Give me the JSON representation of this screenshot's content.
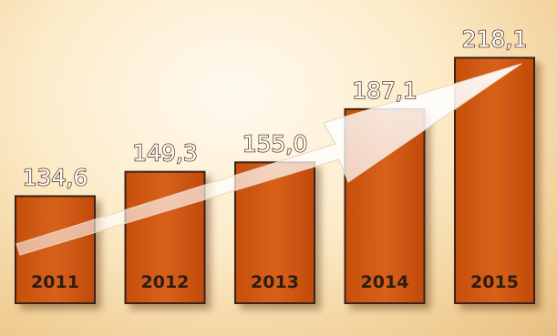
{
  "chart_data": {
    "type": "bar",
    "title": "",
    "xlabel": "",
    "ylabel": "",
    "categories": [
      "2011",
      "2012",
      "2013",
      "2014",
      "2015"
    ],
    "values": [
      134.6,
      149.3,
      155.0,
      187.1,
      218.1
    ],
    "value_labels": [
      "134,6",
      "149,3",
      "155,0",
      "187,1",
      "218,1"
    ],
    "ylim": [
      70,
      220
    ],
    "grid": false,
    "legend": "none",
    "trend_arrow": true
  },
  "colors": {
    "bar": "#d35a12",
    "bar_edge": "#3a2412",
    "background": "#f6dcaa",
    "arrow": "#ffffff"
  }
}
